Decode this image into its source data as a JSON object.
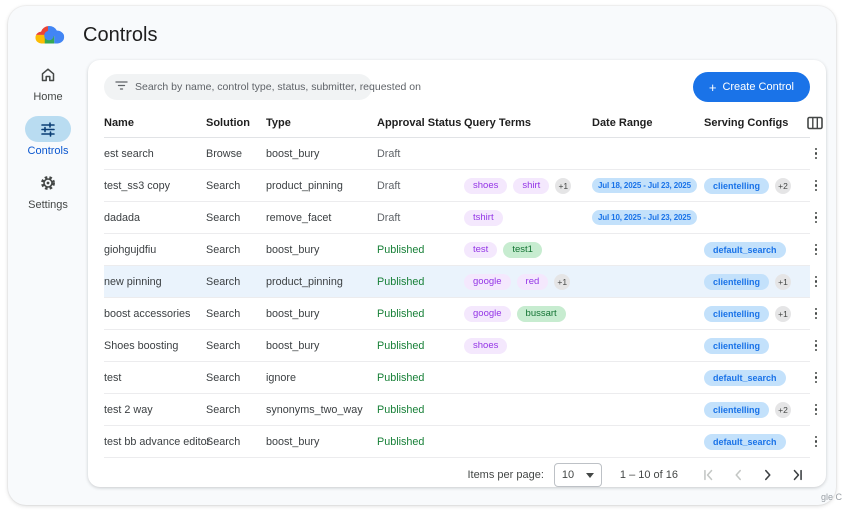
{
  "page": {
    "title": "Controls",
    "watermark": "gle C"
  },
  "sidebar": {
    "items": [
      {
        "label": "Home",
        "icon": "home-icon",
        "active": false
      },
      {
        "label": "Controls",
        "icon": "tune-icon",
        "active": true
      },
      {
        "label": "Settings",
        "icon": "gear-icon",
        "active": false
      }
    ]
  },
  "toolbar": {
    "search_placeholder": "Search by name, control type, status, submitter, requested on",
    "create_plus": "+",
    "create_label": "Create Control"
  },
  "table": {
    "columns": [
      "Name",
      "Solution",
      "Type",
      "Approval Status",
      "Query Terms",
      "Date Range",
      "Serving Configs"
    ],
    "rows": [
      {
        "name": "est search",
        "solution": "Browse",
        "type": "boost_bury",
        "status": "Draft",
        "query_terms": [],
        "query_terms_more": "",
        "date_range": "",
        "serving_configs": [],
        "serving_more": "",
        "highlighted": false
      },
      {
        "name": "test_ss3 copy",
        "solution": "Search",
        "type": "product_pinning",
        "status": "Draft",
        "query_terms": [
          {
            "label": "shoes",
            "color": "purple"
          },
          {
            "label": "shirt",
            "color": "purple"
          }
        ],
        "query_terms_more": "+1",
        "date_range": "Jul 18, 2025 - Jul 23, 2025",
        "serving_configs": [
          "clientelling"
        ],
        "serving_more": "+2",
        "highlighted": false
      },
      {
        "name": "dadada",
        "solution": "Search",
        "type": "remove_facet",
        "status": "Draft",
        "query_terms": [
          {
            "label": "tshirt",
            "color": "purple"
          }
        ],
        "query_terms_more": "",
        "date_range": "Jul 10, 2025 - Jul 23, 2025",
        "serving_configs": [],
        "serving_more": "",
        "highlighted": false
      },
      {
        "name": "giohgujdfiu",
        "solution": "Search",
        "type": "boost_bury",
        "status": "Published",
        "query_terms": [
          {
            "label": "test",
            "color": "purple"
          },
          {
            "label": "test1",
            "color": "green"
          }
        ],
        "query_terms_more": "",
        "date_range": "",
        "serving_configs": [
          "default_search"
        ],
        "serving_more": "",
        "highlighted": false
      },
      {
        "name": "new pinning",
        "solution": "Search",
        "type": "product_pinning",
        "status": "Published",
        "query_terms": [
          {
            "label": "google",
            "color": "purple"
          },
          {
            "label": "red",
            "color": "purple"
          }
        ],
        "query_terms_more": "+1",
        "date_range": "",
        "serving_configs": [
          "clientelling"
        ],
        "serving_more": "+1",
        "highlighted": true
      },
      {
        "name": "boost accessories",
        "solution": "Search",
        "type": "boost_bury",
        "status": "Published",
        "query_terms": [
          {
            "label": "google",
            "color": "purple"
          },
          {
            "label": "bussart",
            "color": "green"
          }
        ],
        "query_terms_more": "",
        "date_range": "",
        "serving_configs": [
          "clientelling"
        ],
        "serving_more": "+1",
        "highlighted": false
      },
      {
        "name": "Shoes boosting",
        "solution": "Search",
        "type": "boost_bury",
        "status": "Published",
        "query_terms": [
          {
            "label": "shoes",
            "color": "purple"
          }
        ],
        "query_terms_more": "",
        "date_range": "",
        "serving_configs": [
          "clientelling"
        ],
        "serving_more": "",
        "highlighted": false
      },
      {
        "name": "test",
        "solution": "Search",
        "type": "ignore",
        "status": "Published",
        "query_terms": [],
        "query_terms_more": "",
        "date_range": "",
        "serving_configs": [
          "default_search"
        ],
        "serving_more": "",
        "highlighted": false
      },
      {
        "name": "test 2 way",
        "solution": "Search",
        "type": "synonyms_two_way",
        "status": "Published",
        "query_terms": [],
        "query_terms_more": "",
        "date_range": "",
        "serving_configs": [
          "clientelling"
        ],
        "serving_more": "+2",
        "highlighted": false
      },
      {
        "name": "test bb advance editor",
        "solution": "Search",
        "type": "boost_bury",
        "status": "Published",
        "query_terms": [],
        "query_terms_more": "",
        "date_range": "",
        "serving_configs": [
          "default_search"
        ],
        "serving_more": "",
        "highlighted": false
      }
    ]
  },
  "footer": {
    "items_per_page_label": "Items per page:",
    "page_size": "10",
    "range": "1 – 10 of 16"
  },
  "colors": {
    "accent": "#1a73e8",
    "published": "#188038",
    "draft": "#5f6368",
    "chip_purple_bg": "#f4e8fd",
    "chip_purple_text": "#9334e6",
    "chip_green_bg": "#c7ecd0",
    "chip_green_text": "#137333",
    "chip_blue_bg": "#c3e1fb",
    "chip_blue_text": "#1a73e8",
    "row_highlight": "#eaf3fc",
    "sidebar_active_pill": "#b9dcf1"
  }
}
